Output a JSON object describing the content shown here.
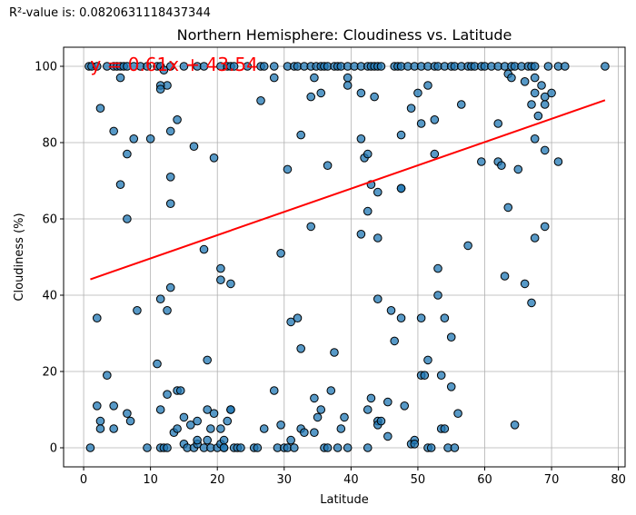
{
  "r2_text": "R²-value is: 0.0820631118437344",
  "colors": {
    "point_fill": "#1f77b4",
    "point_stroke": "#000000",
    "regression": "#ff0000",
    "equation": "#ff0000",
    "grid": "#b0b0b0"
  },
  "chart_data": {
    "type": "scatter",
    "title": "Northern Hemisphere: Cloudiness vs. Latitude",
    "xlabel": "Latitude",
    "ylabel": "Cloudiness (%)",
    "xlim": [
      -3,
      81
    ],
    "ylim": [
      -5,
      105
    ],
    "xticks": [
      0,
      10,
      20,
      30,
      40,
      50,
      60,
      70,
      80
    ],
    "yticks": [
      0,
      20,
      40,
      60,
      80,
      100
    ],
    "grid": true,
    "regression": {
      "slope": 0.61,
      "intercept": 43.54,
      "x_range": [
        1,
        78
      ]
    },
    "annotation": {
      "text": "y = 0.61x + 43.54",
      "x": 1,
      "y": 100
    },
    "points": [
      [
        0.8,
        100
      ],
      [
        1.2,
        100
      ],
      [
        2,
        100
      ],
      [
        3.5,
        100
      ],
      [
        4.5,
        100
      ],
      [
        5,
        100
      ],
      [
        5.5,
        100
      ],
      [
        6,
        100
      ],
      [
        6.5,
        100
      ],
      [
        7.5,
        100
      ],
      [
        8.5,
        100
      ],
      [
        9.5,
        100
      ],
      [
        11,
        100
      ],
      [
        11.5,
        100
      ],
      [
        13,
        100
      ],
      [
        15,
        100
      ],
      [
        17,
        100
      ],
      [
        18,
        100
      ],
      [
        20.5,
        100
      ],
      [
        21.5,
        100
      ],
      [
        22,
        100
      ],
      [
        22.5,
        100
      ],
      [
        24.5,
        100
      ],
      [
        26.5,
        100
      ],
      [
        27,
        100
      ],
      [
        28.5,
        100
      ],
      [
        30.5,
        100
      ],
      [
        31.5,
        100
      ],
      [
        32,
        100
      ],
      [
        33,
        100
      ],
      [
        34,
        100
      ],
      [
        34.8,
        100
      ],
      [
        35.5,
        100
      ],
      [
        36,
        100
      ],
      [
        36.5,
        100
      ],
      [
        37.5,
        100
      ],
      [
        38,
        100
      ],
      [
        38.5,
        100
      ],
      [
        39.5,
        100
      ],
      [
        40.5,
        100
      ],
      [
        41.5,
        100
      ],
      [
        42.5,
        100
      ],
      [
        43,
        100
      ],
      [
        43.5,
        100
      ],
      [
        44,
        100
      ],
      [
        44.5,
        100
      ],
      [
        46.5,
        100
      ],
      [
        47,
        100
      ],
      [
        47.5,
        100
      ],
      [
        48.5,
        100
      ],
      [
        49.5,
        100
      ],
      [
        50.5,
        100
      ],
      [
        51.5,
        100
      ],
      [
        52.5,
        100
      ],
      [
        53,
        100
      ],
      [
        54,
        100
      ],
      [
        55,
        100
      ],
      [
        55.5,
        100
      ],
      [
        56.5,
        100
      ],
      [
        57.5,
        100
      ],
      [
        58,
        100
      ],
      [
        58.5,
        100
      ],
      [
        59.5,
        100
      ],
      [
        60,
        100
      ],
      [
        61,
        100
      ],
      [
        62,
        100
      ],
      [
        63,
        100
      ],
      [
        64,
        100
      ],
      [
        64.5,
        100
      ],
      [
        65.5,
        100
      ],
      [
        66.5,
        100
      ],
      [
        67,
        100
      ],
      [
        67.5,
        100
      ],
      [
        69.5,
        100
      ],
      [
        71,
        100
      ],
      [
        72,
        100
      ],
      [
        78,
        100
      ],
      [
        5.5,
        97
      ],
      [
        12,
        99
      ],
      [
        12.5,
        95
      ],
      [
        11.5,
        95
      ],
      [
        11.5,
        94
      ],
      [
        14,
        86
      ],
      [
        13,
        83
      ],
      [
        16.5,
        79
      ],
      [
        19.5,
        76
      ],
      [
        13,
        71
      ],
      [
        5.5,
        69
      ],
      [
        13,
        64
      ],
      [
        6.5,
        77
      ],
      [
        7.5,
        81
      ],
      [
        10,
        81
      ],
      [
        2.5,
        89
      ],
      [
        4.5,
        83
      ],
      [
        6.5,
        60
      ],
      [
        8,
        36
      ],
      [
        2,
        34
      ],
      [
        11.5,
        39
      ],
      [
        12.5,
        36
      ],
      [
        13,
        42
      ],
      [
        18,
        52
      ],
      [
        20.5,
        47
      ],
      [
        20.5,
        44
      ],
      [
        22,
        43
      ],
      [
        26.5,
        91
      ],
      [
        28.5,
        97
      ],
      [
        30.5,
        73
      ],
      [
        29.5,
        51
      ],
      [
        32.5,
        82
      ],
      [
        34,
        92
      ],
      [
        34.5,
        97
      ],
      [
        35.5,
        93
      ],
      [
        36.5,
        74
      ],
      [
        34,
        58
      ],
      [
        39.5,
        97
      ],
      [
        39.5,
        95
      ],
      [
        41.5,
        93
      ],
      [
        41.5,
        81
      ],
      [
        42,
        76
      ],
      [
        41.5,
        56
      ],
      [
        42.5,
        77
      ],
      [
        42.5,
        62
      ],
      [
        43,
        69
      ],
      [
        43.5,
        92
      ],
      [
        44,
        67
      ],
      [
        44,
        55
      ],
      [
        44,
        39
      ],
      [
        47.5,
        82
      ],
      [
        47.5,
        68
      ],
      [
        47.5,
        68
      ],
      [
        49,
        89
      ],
      [
        50,
        93
      ],
      [
        50.5,
        85
      ],
      [
        51.5,
        95
      ],
      [
        52.5,
        86
      ],
      [
        52.5,
        77
      ],
      [
        53,
        47
      ],
      [
        53,
        40
      ],
      [
        56.5,
        90
      ],
      [
        57.5,
        53
      ],
      [
        59.5,
        75
      ],
      [
        62,
        85
      ],
      [
        62,
        75
      ],
      [
        62.5,
        74
      ],
      [
        63,
        45
      ],
      [
        63.5,
        63
      ],
      [
        63.5,
        98
      ],
      [
        64,
        97
      ],
      [
        65,
        73
      ],
      [
        66,
        96
      ],
      [
        66,
        43
      ],
      [
        67,
        90
      ],
      [
        67.5,
        97
      ],
      [
        67.5,
        93
      ],
      [
        67.5,
        81
      ],
      [
        67.5,
        55
      ],
      [
        67,
        38
      ],
      [
        68,
        87
      ],
      [
        68.5,
        95
      ],
      [
        69,
        90
      ],
      [
        69,
        78
      ],
      [
        69,
        58
      ],
      [
        69,
        92
      ],
      [
        70,
        93
      ],
      [
        71,
        75
      ],
      [
        64.5,
        6
      ],
      [
        1,
        0
      ],
      [
        2,
        11
      ],
      [
        2.5,
        7
      ],
      [
        2.5,
        5
      ],
      [
        3.5,
        19
      ],
      [
        4.5,
        11
      ],
      [
        4.5,
        5
      ],
      [
        6.5,
        9
      ],
      [
        7,
        7
      ],
      [
        9.5,
        0
      ],
      [
        11,
        22
      ],
      [
        11.5,
        10
      ],
      [
        11.5,
        0
      ],
      [
        12,
        0
      ],
      [
        12.5,
        14
      ],
      [
        12.5,
        0
      ],
      [
        13.5,
        4
      ],
      [
        14,
        5
      ],
      [
        14,
        15
      ],
      [
        14.5,
        15
      ],
      [
        15,
        8
      ],
      [
        15,
        1
      ],
      [
        15.5,
        0
      ],
      [
        16,
        6
      ],
      [
        16.5,
        0
      ],
      [
        17,
        7
      ],
      [
        17,
        1
      ],
      [
        17,
        2
      ],
      [
        18,
        0
      ],
      [
        18.5,
        10
      ],
      [
        18.5,
        23
      ],
      [
        18.5,
        2
      ],
      [
        19,
        0
      ],
      [
        19,
        5
      ],
      [
        19.5,
        9
      ],
      [
        20,
        0
      ],
      [
        20.5,
        5
      ],
      [
        20.5,
        1
      ],
      [
        21,
        0
      ],
      [
        21,
        2
      ],
      [
        21,
        0
      ],
      [
        21.5,
        7
      ],
      [
        22,
        10
      ],
      [
        22,
        10
      ],
      [
        22.5,
        0
      ],
      [
        23,
        0
      ],
      [
        23.5,
        0
      ],
      [
        25.5,
        0
      ],
      [
        26,
        0
      ],
      [
        27,
        5
      ],
      [
        28.5,
        15
      ],
      [
        29,
        0
      ],
      [
        29.5,
        6
      ],
      [
        30,
        0
      ],
      [
        30.5,
        0
      ],
      [
        31,
        2
      ],
      [
        31,
        33
      ],
      [
        31.5,
        0
      ],
      [
        32,
        34
      ],
      [
        32.5,
        26
      ],
      [
        32.5,
        5
      ],
      [
        33,
        4
      ],
      [
        34.5,
        13
      ],
      [
        34.5,
        4
      ],
      [
        35,
        8
      ],
      [
        35.5,
        10
      ],
      [
        36,
        0
      ],
      [
        36.5,
        0
      ],
      [
        37,
        15
      ],
      [
        37.5,
        25
      ],
      [
        38,
        0
      ],
      [
        38.5,
        5
      ],
      [
        39,
        8
      ],
      [
        39.5,
        0
      ],
      [
        42.5,
        10
      ],
      [
        42.5,
        0
      ],
      [
        43,
        13
      ],
      [
        44,
        7
      ],
      [
        44,
        6
      ],
      [
        44.5,
        7
      ],
      [
        45.5,
        12
      ],
      [
        45.5,
        3
      ],
      [
        46,
        36
      ],
      [
        46.5,
        28
      ],
      [
        47.5,
        34
      ],
      [
        48,
        11
      ],
      [
        49,
        1
      ],
      [
        49.5,
        2
      ],
      [
        50.5,
        34
      ],
      [
        50.5,
        19
      ],
      [
        51,
        19
      ],
      [
        51.5,
        23
      ],
      [
        51.5,
        0
      ],
      [
        52,
        0
      ],
      [
        53.5,
        19
      ],
      [
        53.5,
        5
      ],
      [
        54,
        5
      ],
      [
        54,
        34
      ],
      [
        54.5,
        0
      ],
      [
        55,
        29
      ],
      [
        55,
        16
      ],
      [
        55.5,
        0
      ],
      [
        56,
        9
      ],
      [
        49.5,
        1
      ]
    ]
  }
}
